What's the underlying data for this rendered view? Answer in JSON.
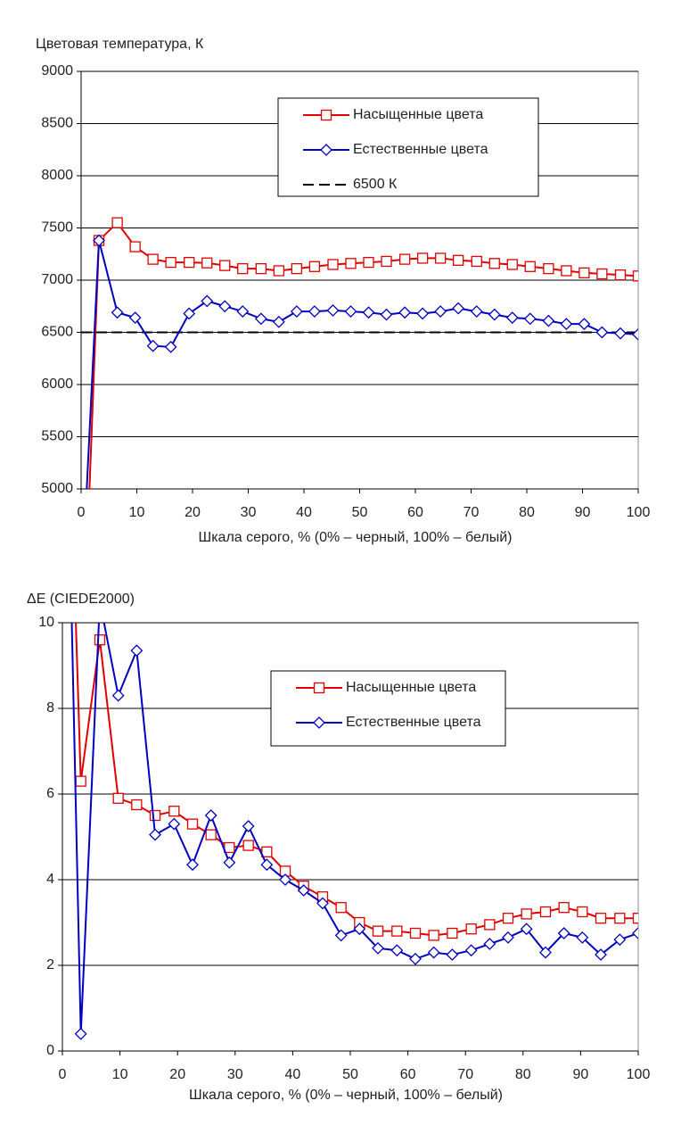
{
  "chart_data": [
    {
      "type": "line",
      "title": "Цветовая температура, К",
      "x_label": "Шкала серого, % (0% – черный, 100% – белый)",
      "x": [
        0,
        3.2,
        6.5,
        9.7,
        12.9,
        16.1,
        19.4,
        22.6,
        25.8,
        29,
        32.3,
        35.5,
        38.7,
        41.9,
        45.2,
        48.4,
        51.6,
        54.8,
        58.1,
        61.3,
        64.5,
        67.7,
        71,
        74.2,
        77.4,
        80.6,
        83.9,
        87.1,
        90.3,
        93.5,
        96.8,
        100
      ],
      "series": [
        {
          "name": "Насыщенные цвета",
          "color": "#e00000",
          "marker": "square",
          "values": [
            2900,
            7380,
            7550,
            7320,
            7200,
            7170,
            7170,
            7165,
            7140,
            7110,
            7110,
            7090,
            7110,
            7130,
            7150,
            7160,
            7170,
            7180,
            7200,
            7210,
            7210,
            7190,
            7180,
            7160,
            7150,
            7130,
            7110,
            7090,
            7070,
            7060,
            7050,
            7040
          ]
        },
        {
          "name": "Естественные цвета",
          "color": "#0000c0",
          "marker": "diamond",
          "values": [
            3900,
            7380,
            6690,
            6640,
            6370,
            6360,
            6680,
            6800,
            6750,
            6700,
            6630,
            6600,
            6700,
            6700,
            6710,
            6700,
            6690,
            6670,
            6690,
            6680,
            6700,
            6730,
            6700,
            6670,
            6640,
            6630,
            6610,
            6580,
            6580,
            6500,
            6490,
            6480
          ]
        }
      ],
      "reference": {
        "name": "6500 К",
        "value": 6500,
        "color": "#000000"
      },
      "xlim": [
        0,
        100
      ],
      "xticks": [
        0,
        10,
        20,
        30,
        40,
        50,
        60,
        70,
        80,
        90,
        100
      ],
      "ylim": [
        5000,
        9000
      ],
      "yticks": [
        5000,
        5500,
        6000,
        6500,
        7000,
        7500,
        8000,
        8500,
        9000
      ],
      "grid": true
    },
    {
      "type": "line",
      "title": "ΔE (CIEDE2000)",
      "x_label": "Шкала серого, % (0% – черный, 100% – белый)",
      "x": [
        0,
        3.2,
        6.5,
        9.7,
        12.9,
        16.1,
        19.4,
        22.6,
        25.8,
        29,
        32.3,
        35.5,
        38.7,
        41.9,
        45.2,
        48.4,
        51.6,
        54.8,
        58.1,
        61.3,
        64.5,
        67.7,
        71,
        74.2,
        77.4,
        80.6,
        83.9,
        87.1,
        90.3,
        93.5,
        96.8,
        100
      ],
      "series": [
        {
          "name": "Насыщенные цвета",
          "color": "#e00000",
          "marker": "square",
          "values": [
            20,
            6.3,
            9.6,
            5.9,
            5.75,
            5.5,
            5.6,
            5.3,
            5.05,
            4.75,
            4.8,
            4.65,
            4.2,
            3.85,
            3.6,
            3.35,
            3.0,
            2.8,
            2.8,
            2.75,
            2.7,
            2.75,
            2.85,
            2.95,
            3.1,
            3.2,
            3.25,
            3.35,
            3.25,
            3.1,
            3.1,
            3.1
          ]
        },
        {
          "name": "Естественные цвета",
          "color": "#0000c0",
          "marker": "diamond",
          "values": [
            20,
            0.4,
            10.5,
            8.3,
            9.35,
            5.05,
            5.3,
            4.35,
            5.5,
            4.4,
            5.25,
            4.35,
            4.0,
            3.75,
            3.45,
            2.7,
            2.85,
            2.4,
            2.35,
            2.15,
            2.3,
            2.25,
            2.35,
            2.5,
            2.65,
            2.85,
            2.3,
            2.75,
            2.65,
            2.25,
            2.6,
            2.75
          ]
        }
      ],
      "xlim": [
        0,
        100
      ],
      "xticks": [
        0,
        10,
        20,
        30,
        40,
        50,
        60,
        70,
        80,
        90,
        100
      ],
      "ylim": [
        0,
        10
      ],
      "yticks": [
        0,
        2,
        4,
        6,
        8,
        10
      ],
      "grid": true
    }
  ]
}
